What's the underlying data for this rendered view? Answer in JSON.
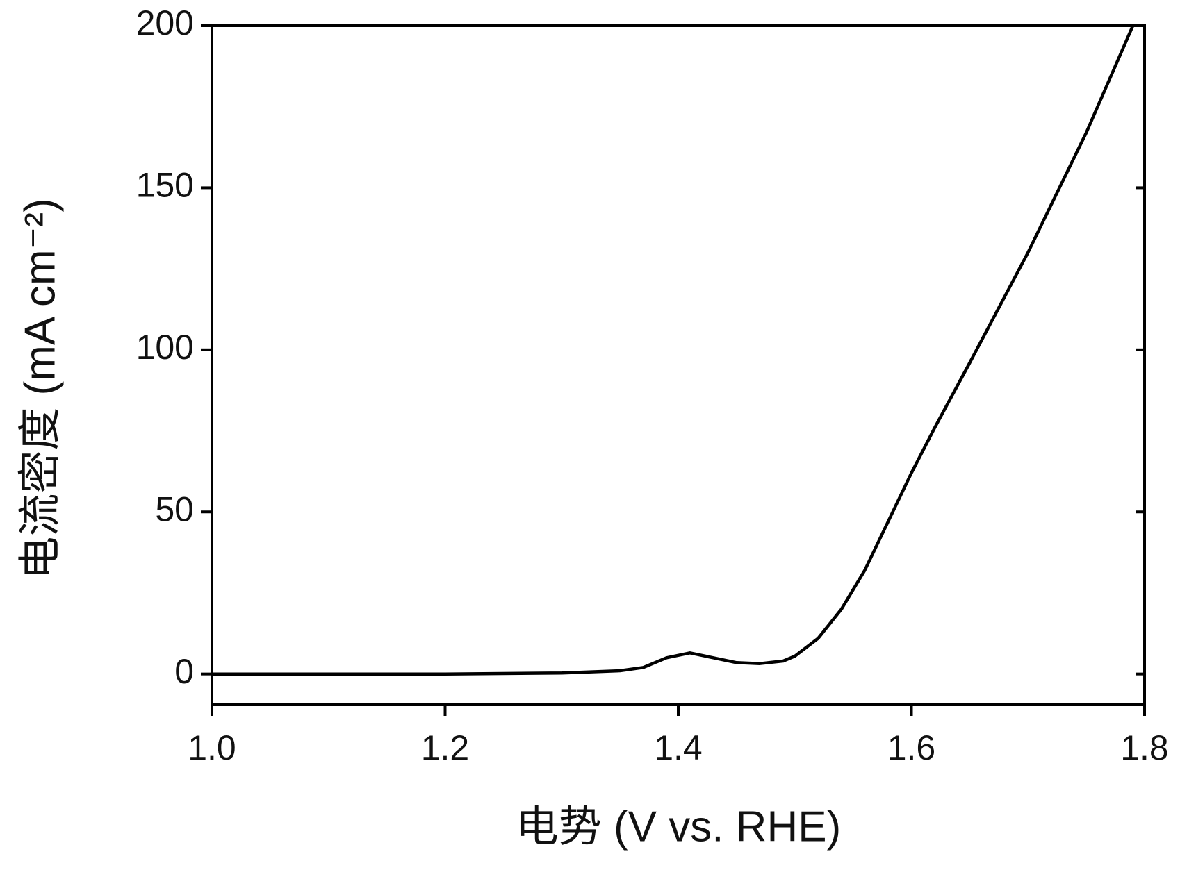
{
  "chart_data": {
    "type": "line",
    "x_label": "电势 (V vs. RHE)",
    "y_label": "电流密度 (mA cm⁻²)",
    "series": [
      {
        "color": "#000000",
        "x": [
          1.0,
          1.1,
          1.2,
          1.3,
          1.35,
          1.37,
          1.39,
          1.41,
          1.43,
          1.45,
          1.47,
          1.49,
          1.5,
          1.52,
          1.54,
          1.56,
          1.58,
          1.6,
          1.62,
          1.65,
          1.7,
          1.75,
          1.79
        ],
        "values": [
          0,
          0,
          0,
          0.3,
          1,
          2,
          5,
          6.5,
          5,
          3.5,
          3.2,
          4,
          5.5,
          11,
          20,
          32,
          47,
          62,
          76,
          96,
          130,
          167,
          200
        ]
      }
    ],
    "xlim": [
      1.0,
      1.8
    ],
    "xticks": [
      {
        "value": 1.0,
        "label": "1.0"
      },
      1.2,
      1.4,
      1.6,
      1.8
    ],
    "ylim": [
      -9.5,
      200
    ],
    "yticks": [
      0,
      50,
      100,
      150,
      200
    ],
    "grid": false
  }
}
